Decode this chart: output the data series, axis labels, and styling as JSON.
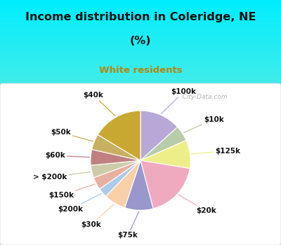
{
  "title_line1": "Income distribution in Coleridge, NE",
  "title_line2": "(%)",
  "subtitle": "White residents",
  "title_color": "#111111",
  "subtitle_color": "#b8860b",
  "bg_color_top": "#00eeff",
  "bg_color_bottom": "#c8eec8",
  "labels": [
    "$100k",
    "$10k",
    "$125k",
    "$20k",
    "$75k",
    "$30k",
    "$200k",
    "$150k",
    "> $200k",
    "$60k",
    "$50k",
    "$40k"
  ],
  "values": [
    13,
    5,
    9,
    18,
    9,
    7,
    3,
    4,
    4,
    5,
    5,
    16
  ],
  "colors": [
    "#b8a8d8",
    "#b8ccaa",
    "#eeee88",
    "#f0aabf",
    "#9898cc",
    "#fad0a8",
    "#aacce8",
    "#e8b0a0",
    "#ccccaa",
    "#c08080",
    "#c8b060",
    "#c8a830"
  ],
  "label_fontsize": 7.5,
  "watermark": "   City-Data.com"
}
